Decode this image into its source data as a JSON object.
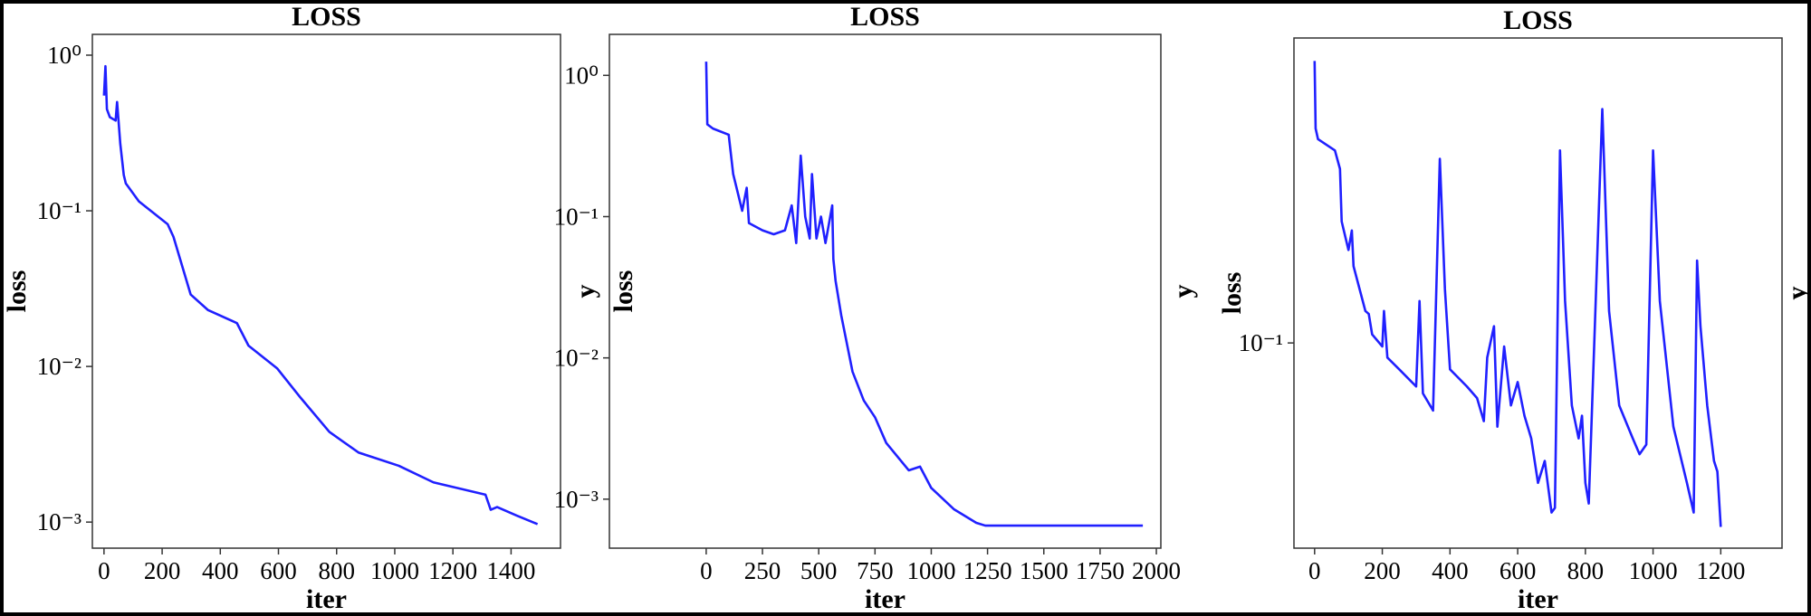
{
  "chart_data": [
    {
      "type": "line",
      "title": "LOSS",
      "xlabel": "iter",
      "ylabel": "loss",
      "right_label": "y",
      "yscale": "log",
      "color": "#2020ff",
      "xlim": [
        -40,
        1570
      ],
      "xticks": [
        0,
        200,
        400,
        600,
        800,
        1000,
        1200,
        1400
      ],
      "ylim": [
        0.00068,
        1.36
      ],
      "yticks": [
        {
          "value": 1,
          "label": "10⁰"
        },
        {
          "value": 0.1,
          "label": "10⁻¹"
        },
        {
          "value": 0.01,
          "label": "10⁻²"
        },
        {
          "value": 0.001,
          "label": "10⁻³"
        }
      ],
      "x": [
        0,
        5,
        10,
        20,
        40,
        45,
        56,
        68,
        75,
        120,
        219,
        239,
        298,
        358,
        457,
        497,
        596,
        676,
        775,
        875,
        1014,
        1133,
        1312,
        1330,
        1352,
        1420,
        1491
      ],
      "values": [
        0.55,
        0.85,
        0.45,
        0.4,
        0.38,
        0.5,
        0.27,
        0.17,
        0.15,
        0.115,
        0.082,
        0.068,
        0.029,
        0.023,
        0.019,
        0.0136,
        0.0097,
        0.0063,
        0.0038,
        0.0028,
        0.0023,
        0.0018,
        0.0015,
        0.0012,
        0.00125,
        0.0011,
        0.00097
      ]
    },
    {
      "type": "line",
      "title": "LOSS",
      "xlabel": "iter",
      "ylabel": "loss",
      "right_label": "y",
      "yscale": "log",
      "color": "#2020ff",
      "xlim": [
        -430,
        2020
      ],
      "xticks": [
        0,
        250,
        500,
        750,
        1000,
        1250,
        1500,
        1750,
        2000
      ],
      "ylim": [
        0.00045,
        1.95
      ],
      "yticks": [
        {
          "value": 1,
          "label": "10⁰"
        },
        {
          "value": 0.1,
          "label": "10⁻¹"
        },
        {
          "value": 0.01,
          "label": "10⁻²"
        },
        {
          "value": 0.001,
          "label": "10⁻³"
        }
      ],
      "x": [
        0,
        5,
        30,
        100,
        120,
        160,
        180,
        190,
        250,
        300,
        350,
        380,
        400,
        420,
        440,
        460,
        470,
        490,
        510,
        530,
        560,
        565,
        575,
        600,
        650,
        700,
        750,
        800,
        900,
        950,
        1000,
        1100,
        1200,
        1240,
        1940
      ],
      "values": [
        1.25,
        0.45,
        0.42,
        0.38,
        0.2,
        0.11,
        0.16,
        0.09,
        0.08,
        0.075,
        0.08,
        0.12,
        0.065,
        0.27,
        0.1,
        0.07,
        0.2,
        0.07,
        0.1,
        0.065,
        0.12,
        0.05,
        0.035,
        0.02,
        0.008,
        0.005,
        0.0038,
        0.0025,
        0.0016,
        0.0017,
        0.0012,
        0.00085,
        0.00068,
        0.00065,
        0.00065
      ]
    },
    {
      "type": "line",
      "title": "LOSS",
      "xlabel": "iter",
      "ylabel": "loss",
      "right_label": "y",
      "yscale": "log",
      "color": "#2020ff",
      "xlim": [
        -61,
        1381
      ],
      "xticks": [
        0,
        200,
        400,
        600,
        800,
        1000,
        1200
      ],
      "ylim": [
        0.031,
        0.57
      ],
      "yticks": [
        {
          "value": 0.1,
          "label": "10⁻¹"
        }
      ],
      "x": [
        0,
        3,
        10,
        60,
        75,
        80,
        100,
        110,
        115,
        150,
        160,
        170,
        200,
        205,
        215,
        250,
        300,
        310,
        320,
        350,
        370,
        385,
        400,
        450,
        480,
        500,
        510,
        530,
        540,
        560,
        580,
        600,
        620,
        640,
        660,
        680,
        700,
        710,
        725,
        740,
        760,
        780,
        790,
        800,
        810,
        850,
        870,
        900,
        940,
        960,
        980,
        1000,
        1020,
        1060,
        1100,
        1120,
        1130,
        1140,
        1160,
        1180,
        1190,
        1200
      ],
      "values": [
        0.5,
        0.34,
        0.32,
        0.3,
        0.27,
        0.2,
        0.17,
        0.19,
        0.155,
        0.12,
        0.118,
        0.105,
        0.098,
        0.12,
        0.092,
        0.086,
        0.078,
        0.127,
        0.075,
        0.068,
        0.286,
        0.136,
        0.086,
        0.078,
        0.073,
        0.064,
        0.092,
        0.11,
        0.062,
        0.098,
        0.07,
        0.08,
        0.066,
        0.058,
        0.045,
        0.051,
        0.038,
        0.039,
        0.3,
        0.127,
        0.07,
        0.058,
        0.066,
        0.045,
        0.04,
        0.38,
        0.12,
        0.07,
        0.058,
        0.053,
        0.056,
        0.3,
        0.127,
        0.062,
        0.045,
        0.038,
        0.16,
        0.11,
        0.07,
        0.051,
        0.048,
        0.035
      ]
    }
  ]
}
